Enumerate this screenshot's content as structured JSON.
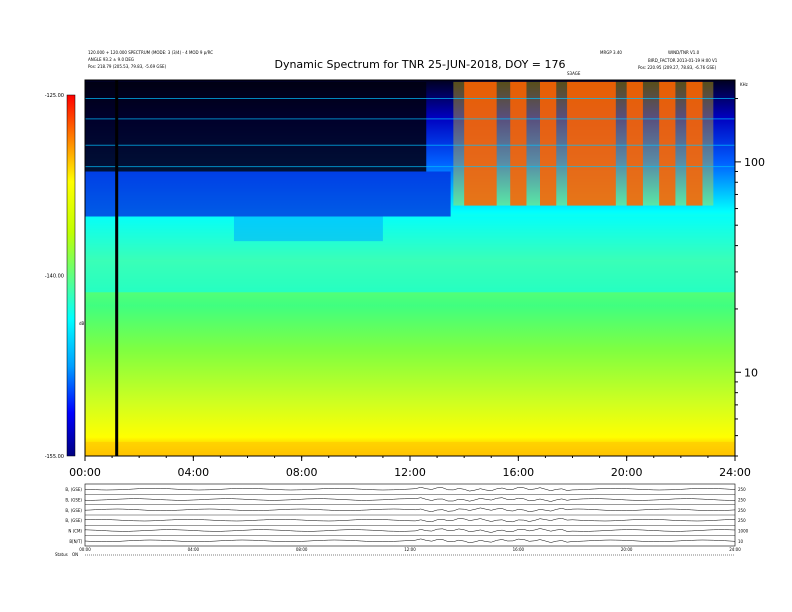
{
  "header": {
    "title": "Dynamic Spectrum for TNR 25-JUN-2018, DOY = 176",
    "left_line1": "120.000 + 120.000 SPECTRUM (MODE: 3 (3/4) - 4 MOD 9 p/RC",
    "left_line2": "ANGLE 93.2 ± 9.0 DEG",
    "left_line3": "Pos: 218.79 (205.53, 79.83, -5.69 GSE)",
    "mid_right": "MRGP 3.40",
    "right_line1": "WIND/TNR V1.0",
    "right_line2": "BIRD_FACTOR 2013-01-19 H:00 V1",
    "right_line3": "Pos: 220.95 (209.27, 78.83, -6.76 GSE)",
    "top_marker": "S3AGE",
    "right_corner": "KHz"
  },
  "chart_data": {
    "type": "heatmap",
    "title": "Dynamic Spectrum for TNR 25-JUN-2018, DOY = 176",
    "x_tick_labels": [
      "00:00",
      "04:00",
      "08:00",
      "12:00",
      "16:00",
      "20:00",
      "24:00"
    ],
    "x_ticks_hours": [
      0,
      4,
      8,
      12,
      16,
      20,
      24
    ],
    "xlim_hours": [
      0,
      24
    ],
    "y_scale": "log",
    "y_tick_labels": [
      "100",
      "10"
    ],
    "y_ticks_khz": [
      100,
      10
    ],
    "ylim_khz": [
      4,
      245
    ],
    "colorbar": {
      "label": "dB",
      "tick_labels": [
        "-125.00",
        "-140.00",
        "-155.00"
      ],
      "ticks": [
        -125,
        -140,
        -155
      ],
      "range": [
        -155,
        -125
      ],
      "colors": [
        "#000080",
        "#0000ff",
        "#00a0ff",
        "#00ffff",
        "#60ff80",
        "#c0ff00",
        "#ffff00",
        "#ff8000",
        "#ff0000"
      ]
    },
    "black_gap_hours": 1.17,
    "panels": [
      {
        "label_left": "B, (GSE)",
        "label_right": "250"
      },
      {
        "label_left": "B, (GSE)",
        "label_right": "250"
      },
      {
        "label_left": "B, (GSE)",
        "label_right": "250"
      },
      {
        "label_left": "B, (GSE)",
        "label_right": "250"
      },
      {
        "label_left": "N (CM)",
        "label_right": "1000"
      },
      {
        "label_left": "B[N/T]",
        "label_right": "10"
      }
    ],
    "footer_left": "Status",
    "footer_left2": "ON"
  }
}
